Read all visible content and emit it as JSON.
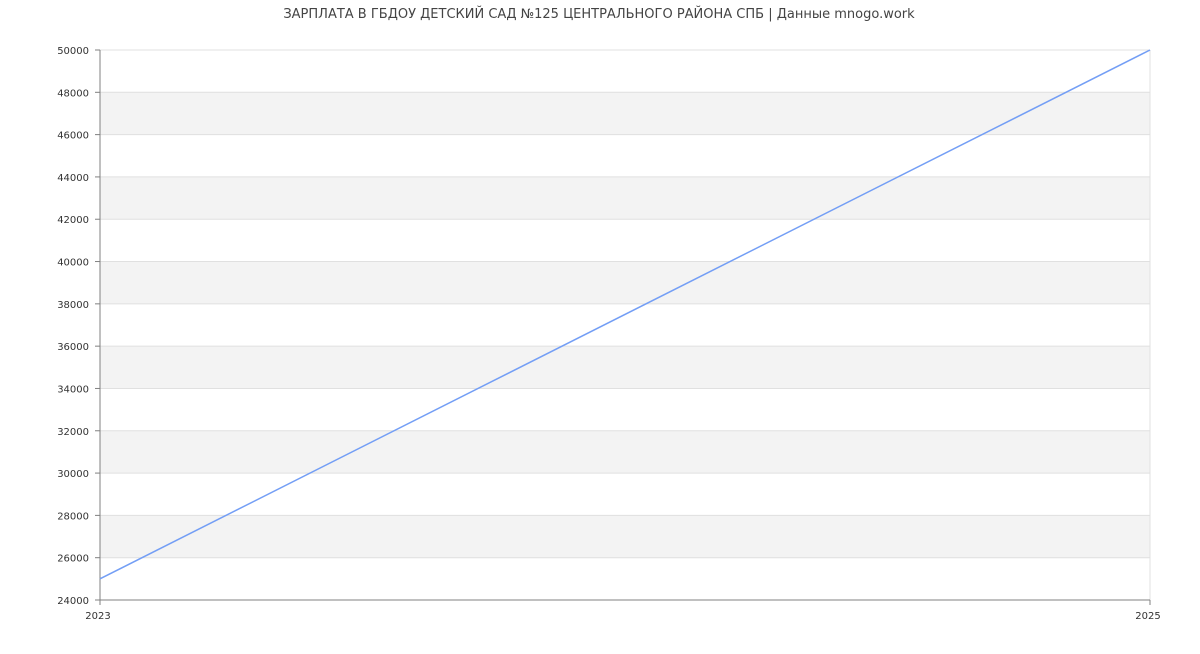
{
  "chart_data": {
    "type": "line",
    "title": "ЗАРПЛАТА В ГБДОУ ДЕТСКИЙ САД №125 ЦЕНТРАЛЬНОГО РАЙОНА СПБ | Данные mnogo.work",
    "xlabel": "",
    "ylabel": "",
    "x_ticks": [
      "2023",
      "2025"
    ],
    "y_ticks": [
      24000,
      26000,
      28000,
      30000,
      32000,
      34000,
      36000,
      38000,
      40000,
      42000,
      44000,
      46000,
      48000,
      50000
    ],
    "xlim": [
      2023,
      2025
    ],
    "ylim": [
      24000,
      50000
    ],
    "grid": true,
    "series": [
      {
        "x": [
          2023,
          2025
        ],
        "y": [
          25000,
          50000
        ],
        "color": "#739ef5"
      }
    ],
    "band_color": "#f3f3f3",
    "grid_color": "#e0e0e0",
    "axis_color": "#808080"
  }
}
